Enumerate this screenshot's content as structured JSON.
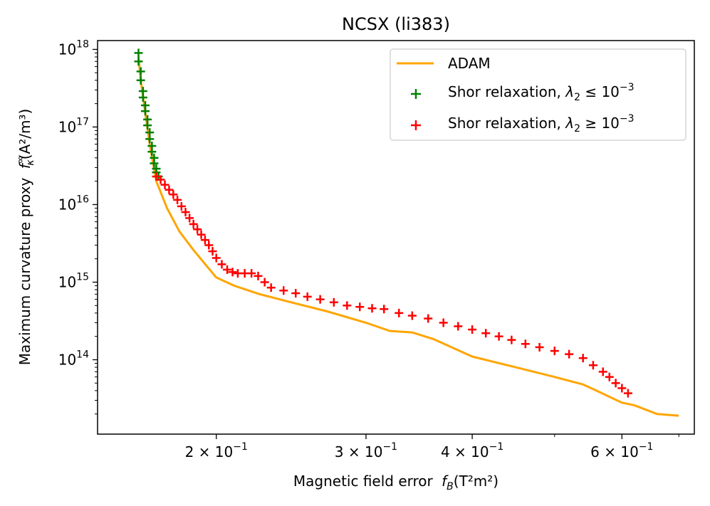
{
  "chart_data": {
    "type": "line",
    "title": "NCSX (li383)",
    "xlabel": "Magnetic field error",
    "xlabel_sym": "f",
    "xlabel_sub": "B",
    "xlabel_units": "(T²m²)",
    "ylabel": "Maximum curvature proxy",
    "ylabel_sym": "f",
    "ylabel_sup": "∞",
    "ylabel_sub": "κ",
    "ylabel_units": "(A²/m³)",
    "xscale": "log",
    "yscale": "log",
    "xlim": [
      0.145,
      0.73
    ],
    "ylim": [
      11000000000000.0,
      1.3e+18
    ],
    "xticks": [
      {
        "value": 0.2,
        "mant": "2 × 10",
        "exp": "−1"
      },
      {
        "value": 0.3,
        "mant": "3 × 10",
        "exp": "−1"
      },
      {
        "value": 0.4,
        "mant": "4 × 10",
        "exp": "−1"
      },
      {
        "value": 0.6,
        "mant": "6 × 10",
        "exp": "−1"
      }
    ],
    "xminor": [
      0.5,
      0.7
    ],
    "yticks": [
      {
        "value": 100000000000000.0,
        "mant": "10",
        "exp": "14"
      },
      {
        "value": 1000000000000000.0,
        "mant": "10",
        "exp": "15"
      },
      {
        "value": 1e+16,
        "mant": "10",
        "exp": "16"
      },
      {
        "value": 1e+17,
        "mant": "10",
        "exp": "17"
      },
      {
        "value": 1e+18,
        "mant": "10",
        "exp": "18"
      }
    ],
    "legend_position": "top-right",
    "series": [
      {
        "name": "ADAM",
        "kind": "line",
        "color": "#FFA500",
        "x": [
          0.162,
          0.163,
          0.165,
          0.167,
          0.17,
          0.175,
          0.181,
          0.188,
          0.195,
          0.2,
          0.21,
          0.225,
          0.245,
          0.27,
          0.3,
          0.32,
          0.34,
          0.36,
          0.4,
          0.45,
          0.5,
          0.54,
          0.56,
          0.6,
          0.62,
          0.66,
          0.7
        ],
        "y": [
          8e+17,
          4e+17,
          1.5e+17,
          6e+16,
          2e+16,
          9000000000000000.0,
          4500000000000000.0,
          2600000000000000.0,
          1600000000000000.0,
          1150000000000000.0,
          900000000000000.0,
          700000000000000.0,
          550000000000000.0,
          420000000000000.0,
          300000000000000.0,
          235000000000000.0,
          225000000000000.0,
          185000000000000.0,
          110000000000000.0,
          80000000000000.0,
          60000000000000.0,
          48000000000000.0,
          40000000000000.0,
          28000000000000.0,
          26000000000000.0,
          20000000000000.0,
          19000000000000.0
        ]
      },
      {
        "name": "Shor relaxation, ",
        "legend_math_sym": "λ",
        "legend_math_sub": "2",
        "legend_math_rel": " ≤ 10",
        "legend_math_exp": "−3",
        "kind": "scatter",
        "marker": "+",
        "color": "#008000",
        "x": [
          0.162,
          0.162,
          0.163,
          0.163,
          0.164,
          0.164,
          0.165,
          0.165,
          0.166,
          0.166,
          0.167,
          0.167,
          0.168,
          0.168,
          0.169,
          0.169,
          0.17,
          0.17,
          0.171
        ],
        "y": [
          9e+17,
          7e+17,
          5.2e+17,
          4e+17,
          2.9e+17,
          2.4e+17,
          1.9e+17,
          1.6e+17,
          1.25e+17,
          1.05e+17,
          8.5e+16,
          7e+16,
          5.7e+16,
          4.8e+16,
          4e+16,
          3.4e+16,
          2.9e+16,
          2.6e+16,
          2.3e+16
        ]
      },
      {
        "name": "Shor relaxation, ",
        "legend_math_sym": "λ",
        "legend_math_sub": "2",
        "legend_math_rel": " ≥ 10",
        "legend_math_exp": "−3",
        "kind": "scatter",
        "marker": "+",
        "color": "#FF0000",
        "x": [
          0.17,
          0.172,
          0.174,
          0.176,
          0.178,
          0.18,
          0.182,
          0.184,
          0.186,
          0.188,
          0.19,
          0.192,
          0.194,
          0.196,
          0.198,
          0.2,
          0.203,
          0.206,
          0.209,
          0.212,
          0.216,
          0.22,
          0.224,
          0.228,
          0.232,
          0.24,
          0.248,
          0.256,
          0.265,
          0.275,
          0.285,
          0.295,
          0.305,
          0.315,
          0.328,
          0.34,
          0.355,
          0.37,
          0.385,
          0.4,
          0.415,
          0.43,
          0.445,
          0.462,
          0.48,
          0.5,
          0.52,
          0.54,
          0.555,
          0.57,
          0.58,
          0.59,
          0.6,
          0.61
        ],
        "y": [
          2.3e+16,
          2.1e+16,
          1.8e+16,
          1.55e+16,
          1.35e+16,
          1.15e+16,
          9500000000000000.0,
          8000000000000000.0,
          6700000000000000.0,
          5600000000000000.0,
          4800000000000000.0,
          4100000000000000.0,
          3500000000000000.0,
          3000000000000000.0,
          2500000000000000.0,
          2050000000000000.0,
          1700000000000000.0,
          1450000000000000.0,
          1350000000000000.0,
          1300000000000000.0,
          1300000000000000.0,
          1300000000000000.0,
          1200000000000000.0,
          1000000000000000.0,
          850000000000000.0,
          780000000000000.0,
          720000000000000.0,
          650000000000000.0,
          600000000000000.0,
          550000000000000.0,
          500000000000000.0,
          480000000000000.0,
          460000000000000.0,
          450000000000000.0,
          400000000000000.0,
          370000000000000.0,
          340000000000000.0,
          300000000000000.0,
          270000000000000.0,
          245000000000000.0,
          220000000000000.0,
          200000000000000.0,
          180000000000000.0,
          160000000000000.0,
          145000000000000.0,
          130000000000000.0,
          118000000000000.0,
          105000000000000.0,
          85000000000000.0,
          70000000000000.0,
          60000000000000.0,
          50000000000000.0,
          43000000000000.0,
          37000000000000.0
        ]
      }
    ]
  }
}
